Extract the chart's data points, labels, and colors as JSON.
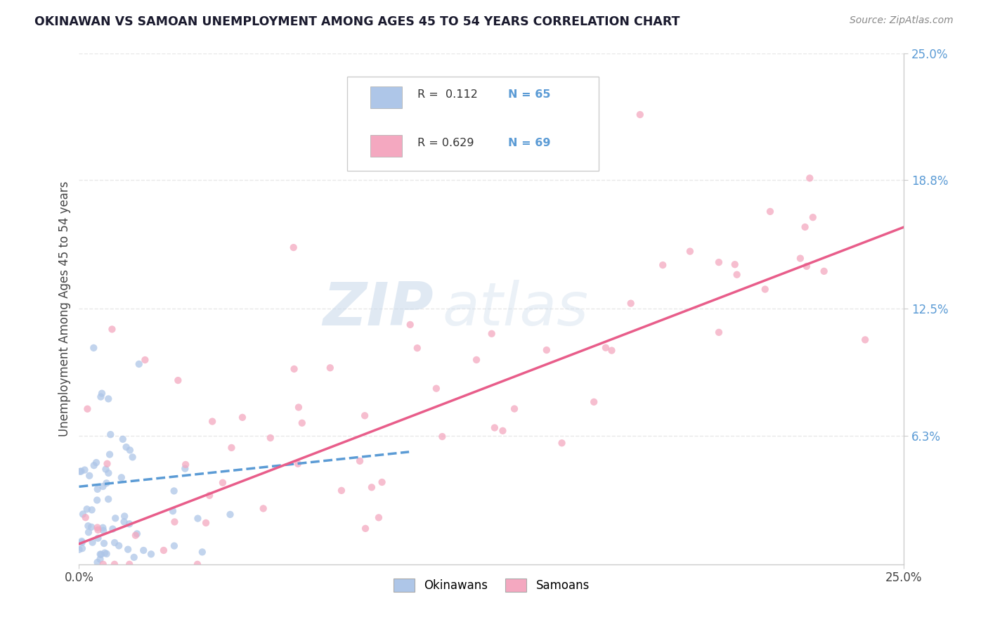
{
  "title": "OKINAWAN VS SAMOAN UNEMPLOYMENT AMONG AGES 45 TO 54 YEARS CORRELATION CHART",
  "source": "Source: ZipAtlas.com",
  "ylabel": "Unemployment Among Ages 45 to 54 years",
  "xlim": [
    0,
    0.25
  ],
  "ylim": [
    0,
    0.25
  ],
  "xtick_labels": [
    "0.0%",
    "25.0%"
  ],
  "ytick_labels": [
    "6.3%",
    "12.5%",
    "18.8%",
    "25.0%"
  ],
  "ytick_values": [
    0.063,
    0.125,
    0.188,
    0.25
  ],
  "okinawan_color": "#aec6e8",
  "samoan_color": "#f4a8c0",
  "okinawan_line_color": "#5b9bd5",
  "samoan_line_color": "#e85d8a",
  "R_okinawan": 0.112,
  "N_okinawan": 65,
  "R_samoan": 0.629,
  "N_samoan": 69,
  "legend_label_1": "Okinawans",
  "legend_label_2": "Samoans",
  "watermark_zip": "ZIP",
  "watermark_atlas": "atlas",
  "background_color": "#ffffff",
  "grid_color": "#e8e8e8",
  "axis_color": "#cccccc",
  "title_color": "#1a1a2e",
  "source_color": "#888888",
  "tick_color_blue": "#5b9bd5",
  "legend_R_color": "#333333",
  "legend_N_color": "#5b9bd5"
}
